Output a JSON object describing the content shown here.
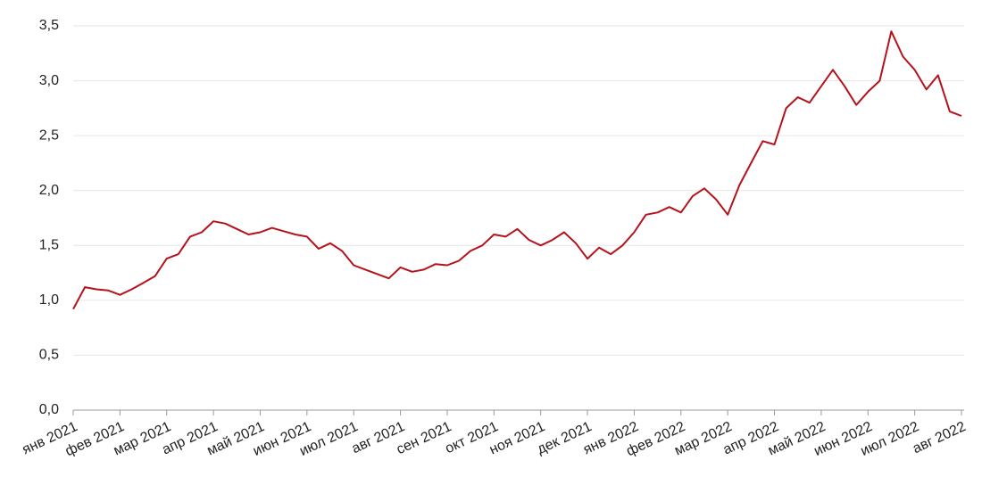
{
  "chart_data": {
    "type": "line",
    "categories": [
      "янв 2021",
      null,
      null,
      null,
      "фев 2021",
      null,
      null,
      null,
      "мар 2021",
      null,
      null,
      null,
      "апр 2021",
      null,
      null,
      null,
      "май 2021",
      null,
      null,
      null,
      "июн 2021",
      null,
      null,
      null,
      "июл 2021",
      null,
      null,
      null,
      "авг 2021",
      null,
      null,
      null,
      "сен 2021",
      null,
      null,
      null,
      "окт 2021",
      null,
      null,
      null,
      "ноя 2021",
      null,
      null,
      null,
      "дек 2021",
      null,
      null,
      null,
      "янв 2022",
      null,
      null,
      null,
      "фев 2022",
      null,
      null,
      null,
      "мар 2022",
      null,
      null,
      null,
      "апр 2022",
      null,
      null,
      null,
      "май 2022",
      null,
      null,
      null,
      "июн 2022",
      null,
      null,
      null,
      "июл 2022",
      null,
      null,
      null,
      "авг 2022"
    ],
    "series": [
      {
        "color": "#b5121b",
        "values": [
          0.92,
          1.12,
          1.1,
          1.09,
          1.05,
          1.1,
          1.16,
          1.22,
          1.38,
          1.42,
          1.58,
          1.62,
          1.72,
          1.7,
          1.65,
          1.6,
          1.62,
          1.66,
          1.63,
          1.6,
          1.58,
          1.47,
          1.52,
          1.45,
          1.32,
          1.28,
          1.24,
          1.2,
          1.3,
          1.26,
          1.28,
          1.33,
          1.32,
          1.36,
          1.45,
          1.5,
          1.6,
          1.58,
          1.65,
          1.55,
          1.5,
          1.55,
          1.62,
          1.52,
          1.38,
          1.48,
          1.42,
          1.5,
          1.62,
          1.78,
          1.8,
          1.85,
          1.8,
          1.95,
          2.02,
          1.92,
          1.78,
          2.05,
          2.25,
          2.45,
          2.42,
          2.75,
          2.85,
          2.8,
          2.95,
          3.1,
          2.95,
          2.78,
          2.9,
          3.0,
          3.45,
          3.22,
          3.1,
          2.92,
          3.05,
          2.72,
          2.68
        ]
      }
    ],
    "ylim": [
      0,
      3.5
    ],
    "yticks": [
      {
        "value": 0,
        "label": "0,0"
      },
      {
        "value": 0.5,
        "label": "0,5"
      },
      {
        "value": 1,
        "label": "1,0"
      },
      {
        "value": 1.5,
        "label": "1,5"
      },
      {
        "value": 2,
        "label": "2,0"
      },
      {
        "value": 2.5,
        "label": "2,5"
      },
      {
        "value": 3,
        "label": "3,0"
      },
      {
        "value": 3.5,
        "label": "3,5"
      }
    ],
    "grid": true
  }
}
